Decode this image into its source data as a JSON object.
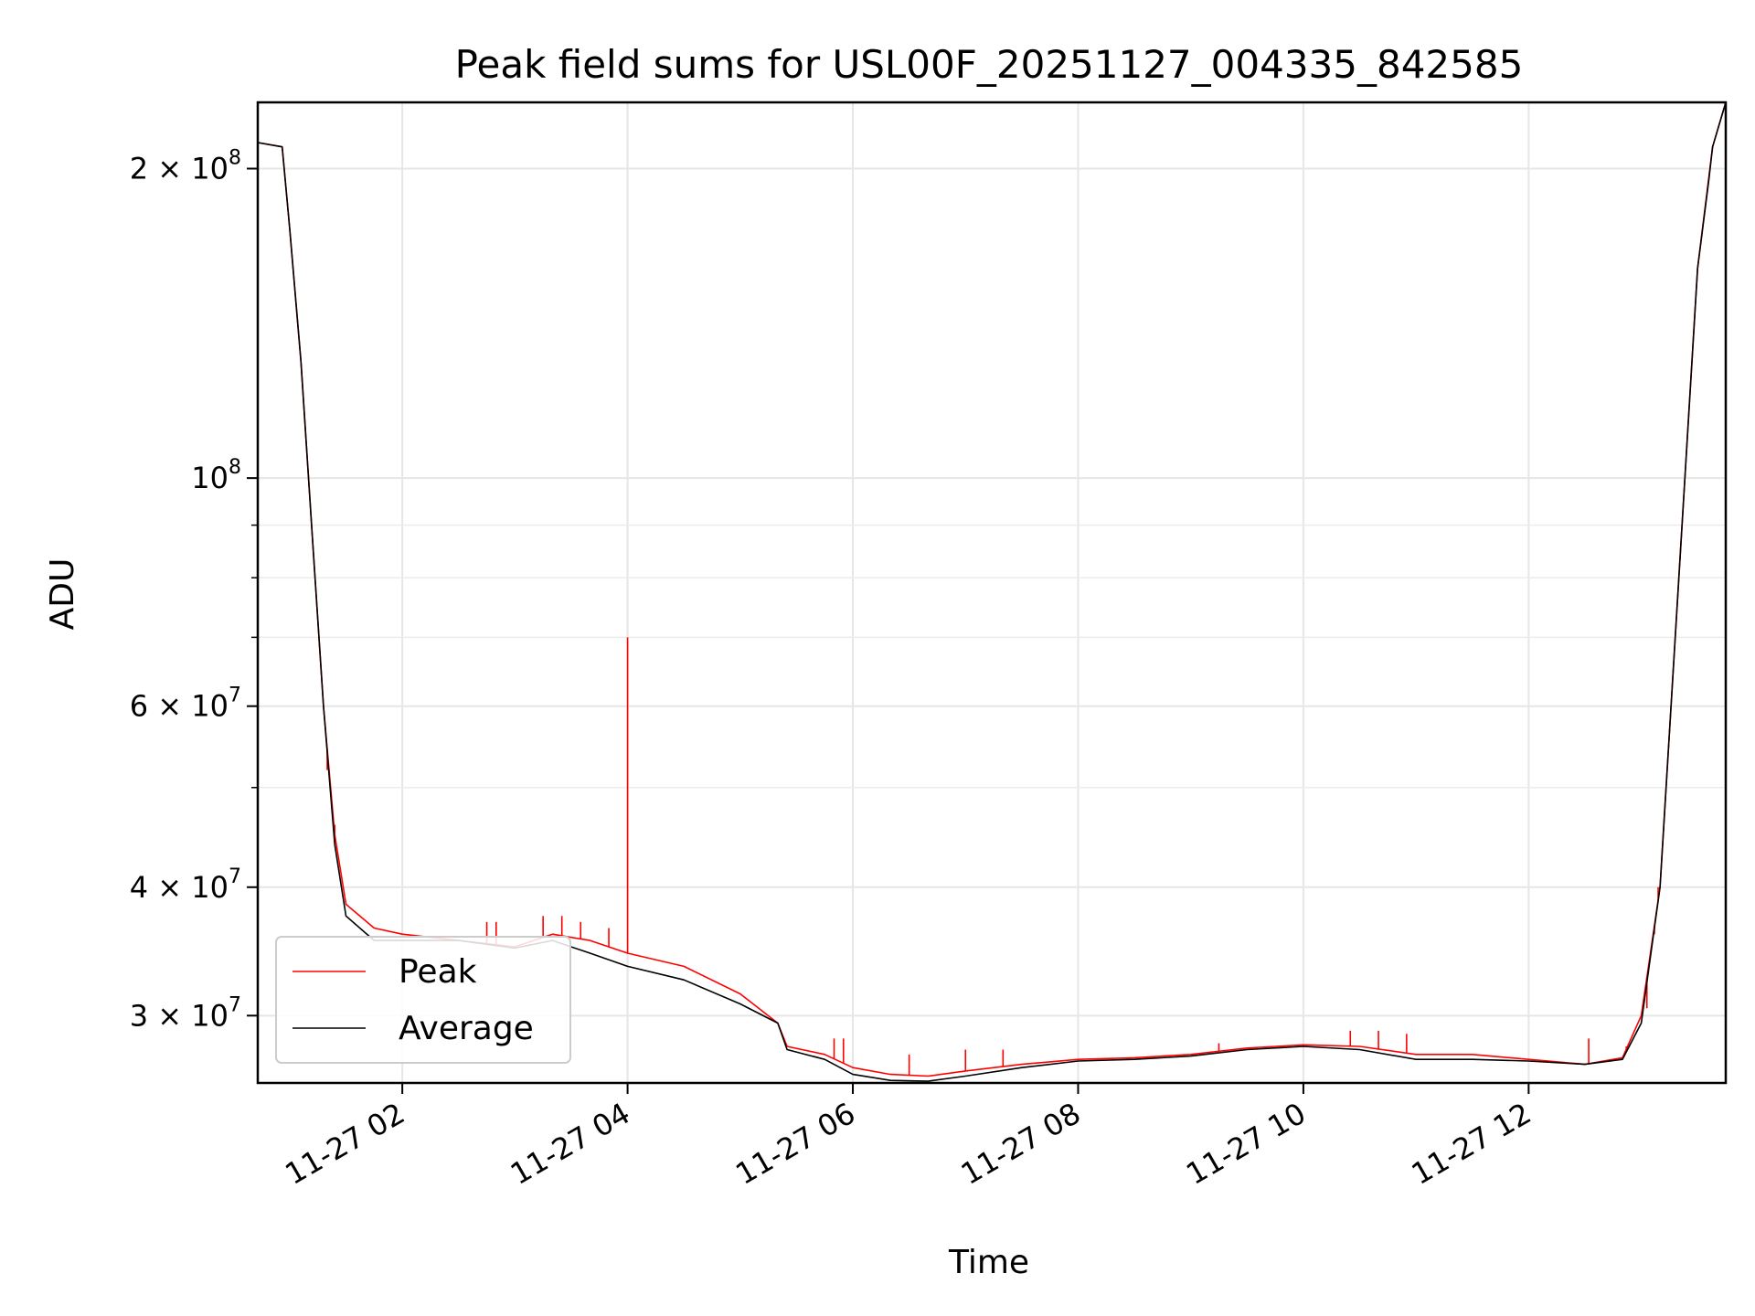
{
  "chart_data": {
    "type": "line",
    "title": "Peak field sums for USL00F_20251127_004335_842585",
    "xlabel": "Time",
    "ylabel": "ADU",
    "y_scale": "log",
    "x_range": [
      "2025-11-27 00:43",
      "2025-11-27 13:45"
    ],
    "ylim": [
      25800000,
      232000000
    ],
    "x_ticks": [
      {
        "t": "2025-11-27 02:00",
        "label": "11-27 02"
      },
      {
        "t": "2025-11-27 04:00",
        "label": "11-27 04"
      },
      {
        "t": "2025-11-27 06:00",
        "label": "11-27 06"
      },
      {
        "t": "2025-11-27 08:00",
        "label": "11-27 08"
      },
      {
        "t": "2025-11-27 10:00",
        "label": "11-27 10"
      },
      {
        "t": "2025-11-27 12:00",
        "label": "11-27 12"
      }
    ],
    "y_ticks": [
      {
        "v": 30000000,
        "mant": "3",
        "exp": "7"
      },
      {
        "v": 40000000,
        "mant": "4",
        "exp": "7"
      },
      {
        "v": 60000000,
        "mant": "6",
        "exp": "7"
      },
      {
        "v": 100000000,
        "mant": "",
        "exp": "8"
      },
      {
        "v": 200000000,
        "mant": "2",
        "exp": "8"
      }
    ],
    "y_minor_ticks": [
      50000000,
      70000000,
      80000000,
      90000000
    ],
    "grid": true,
    "legend_position": "lower-left",
    "series": [
      {
        "name": "Peak",
        "color": "#ff0000",
        "points": [
          [
            "2025-11-27 00:43",
            212000000
          ],
          [
            "2025-11-27 00:56",
            210000000
          ],
          [
            "2025-11-27 01:00",
            175000000
          ],
          [
            "2025-11-27 01:06",
            130000000
          ],
          [
            "2025-11-27 01:12",
            88000000
          ],
          [
            "2025-11-27 01:18",
            60000000
          ],
          [
            "2025-11-27 01:24",
            45000000
          ],
          [
            "2025-11-27 01:30",
            38500000
          ],
          [
            "2025-11-27 01:45",
            36500000
          ],
          [
            "2025-11-27 02:00",
            36000000
          ],
          [
            "2025-11-27 02:30",
            35500000
          ],
          [
            "2025-11-27 03:00",
            35000000
          ],
          [
            "2025-11-27 03:20",
            36000000
          ],
          [
            "2025-11-27 03:40",
            35500000
          ],
          [
            "2025-11-27 04:00",
            34500000
          ],
          [
            "2025-11-27 04:30",
            33500000
          ],
          [
            "2025-11-27 05:00",
            31500000
          ],
          [
            "2025-11-27 05:20",
            29500000
          ],
          [
            "2025-11-27 05:25",
            28000000
          ],
          [
            "2025-11-27 05:45",
            27500000
          ],
          [
            "2025-11-27 06:00",
            26700000
          ],
          [
            "2025-11-27 06:20",
            26300000
          ],
          [
            "2025-11-27 06:40",
            26200000
          ],
          [
            "2025-11-27 07:00",
            26500000
          ],
          [
            "2025-11-27 07:30",
            26900000
          ],
          [
            "2025-11-27 08:00",
            27200000
          ],
          [
            "2025-11-27 08:30",
            27300000
          ],
          [
            "2025-11-27 09:00",
            27500000
          ],
          [
            "2025-11-27 09:30",
            27900000
          ],
          [
            "2025-11-27 10:00",
            28100000
          ],
          [
            "2025-11-27 10:30",
            28000000
          ],
          [
            "2025-11-27 11:00",
            27500000
          ],
          [
            "2025-11-27 11:30",
            27500000
          ],
          [
            "2025-11-27 12:00",
            27200000
          ],
          [
            "2025-11-27 12:30",
            26900000
          ],
          [
            "2025-11-27 12:50",
            27300000
          ],
          [
            "2025-11-27 13:00",
            30000000
          ],
          [
            "2025-11-27 13:10",
            40000000
          ],
          [
            "2025-11-27 13:20",
            80000000
          ],
          [
            "2025-11-27 13:30",
            160000000
          ],
          [
            "2025-11-27 13:38",
            210000000
          ],
          [
            "2025-11-27 13:45",
            232000000
          ]
        ],
        "spikes": [
          [
            "2025-11-27 01:20",
            52000000
          ],
          [
            "2025-11-27 01:24",
            46000000
          ],
          [
            "2025-11-27 02:45",
            37000000
          ],
          [
            "2025-11-27 02:50",
            37000000
          ],
          [
            "2025-11-27 03:15",
            37500000
          ],
          [
            "2025-11-27 03:25",
            37500000
          ],
          [
            "2025-11-27 03:35",
            37000000
          ],
          [
            "2025-11-27 03:50",
            36500000
          ],
          [
            "2025-11-27 04:00",
            70000000
          ],
          [
            "2025-11-27 05:50",
            28500000
          ],
          [
            "2025-11-27 05:55",
            28500000
          ],
          [
            "2025-11-27 06:30",
            27500000
          ],
          [
            "2025-11-27 07:00",
            27800000
          ],
          [
            "2025-11-27 07:20",
            27800000
          ],
          [
            "2025-11-27 09:15",
            28200000
          ],
          [
            "2025-11-27 10:25",
            29000000
          ],
          [
            "2025-11-27 10:40",
            29000000
          ],
          [
            "2025-11-27 10:55",
            28800000
          ],
          [
            "2025-11-27 12:32",
            28500000
          ],
          [
            "2025-11-27 12:52",
            28000000
          ],
          [
            "2025-11-27 13:03",
            30500000
          ],
          [
            "2025-11-27 13:07",
            36000000
          ],
          [
            "2025-11-27 13:09",
            40000000
          ]
        ]
      },
      {
        "name": "Average",
        "color": "#000000",
        "points": [
          [
            "2025-11-27 00:43",
            212000000
          ],
          [
            "2025-11-27 00:56",
            210000000
          ],
          [
            "2025-11-27 01:00",
            175000000
          ],
          [
            "2025-11-27 01:06",
            130000000
          ],
          [
            "2025-11-27 01:12",
            88000000
          ],
          [
            "2025-11-27 01:18",
            60000000
          ],
          [
            "2025-11-27 01:24",
            44000000
          ],
          [
            "2025-11-27 01:30",
            37500000
          ],
          [
            "2025-11-27 01:45",
            35500000
          ],
          [
            "2025-11-27 02:00",
            35500000
          ],
          [
            "2025-11-27 02:30",
            35500000
          ],
          [
            "2025-11-27 03:00",
            34900000
          ],
          [
            "2025-11-27 03:20",
            35500000
          ],
          [
            "2025-11-27 03:40",
            34500000
          ],
          [
            "2025-11-27 04:00",
            33500000
          ],
          [
            "2025-11-27 04:30",
            32500000
          ],
          [
            "2025-11-27 05:00",
            30800000
          ],
          [
            "2025-11-27 05:20",
            29500000
          ],
          [
            "2025-11-27 05:25",
            27800000
          ],
          [
            "2025-11-27 05:45",
            27200000
          ],
          [
            "2025-11-27 06:00",
            26300000
          ],
          [
            "2025-11-27 06:20",
            25950000
          ],
          [
            "2025-11-27 06:40",
            25900000
          ],
          [
            "2025-11-27 07:00",
            26200000
          ],
          [
            "2025-11-27 07:30",
            26700000
          ],
          [
            "2025-11-27 08:00",
            27100000
          ],
          [
            "2025-11-27 08:30",
            27200000
          ],
          [
            "2025-11-27 09:00",
            27400000
          ],
          [
            "2025-11-27 09:30",
            27800000
          ],
          [
            "2025-11-27 10:00",
            28000000
          ],
          [
            "2025-11-27 10:30",
            27800000
          ],
          [
            "2025-11-27 11:00",
            27200000
          ],
          [
            "2025-11-27 11:30",
            27200000
          ],
          [
            "2025-11-27 12:00",
            27100000
          ],
          [
            "2025-11-27 12:30",
            26900000
          ],
          [
            "2025-11-27 12:50",
            27200000
          ],
          [
            "2025-11-27 13:00",
            29500000
          ],
          [
            "2025-11-27 13:10",
            40000000
          ],
          [
            "2025-11-27 13:20",
            80000000
          ],
          [
            "2025-11-27 13:30",
            160000000
          ],
          [
            "2025-11-27 13:36",
            195000000
          ],
          [
            "2025-11-27 13:38",
            210000000
          ],
          [
            "2025-11-27 13:45",
            232000000
          ]
        ]
      }
    ]
  }
}
